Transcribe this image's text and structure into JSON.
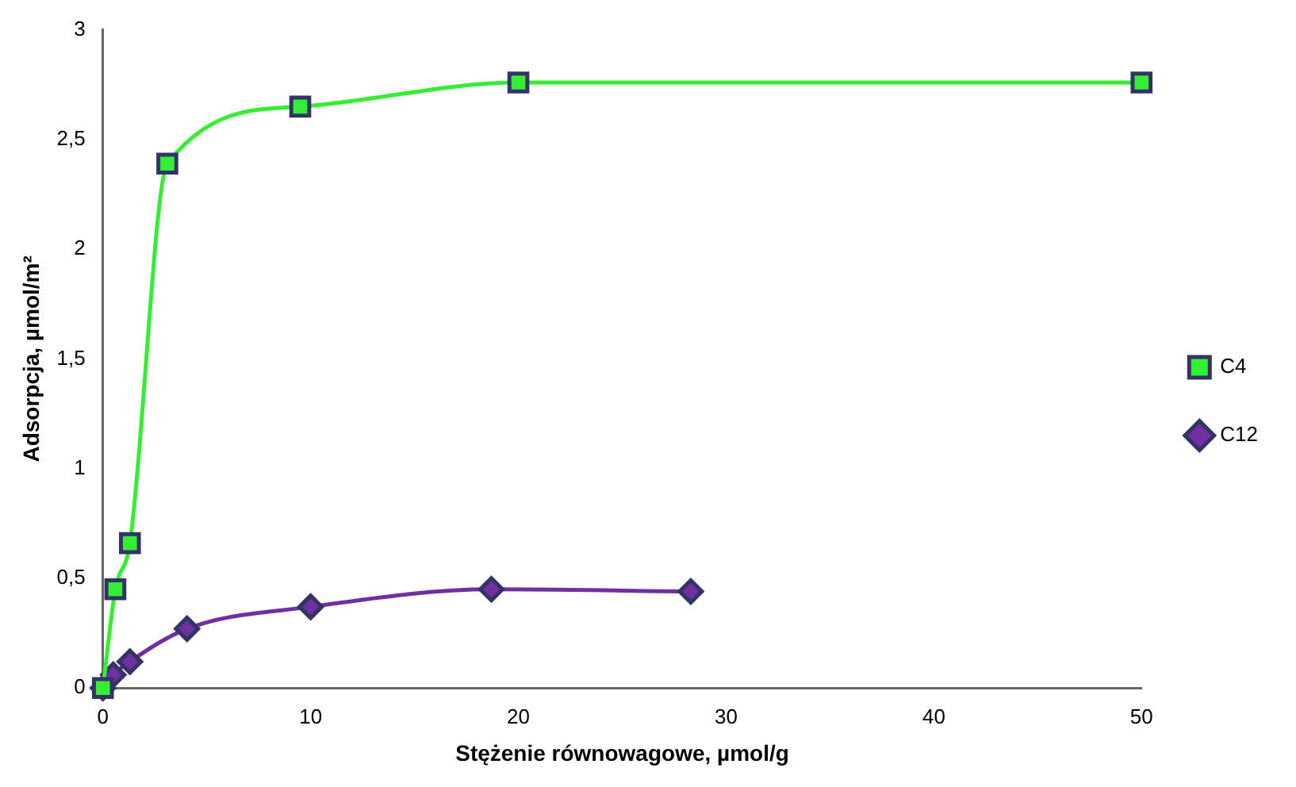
{
  "chart_data": {
    "type": "line",
    "xlabel": "Stężenie równowagowe, µmol/g",
    "ylabel": "Adsorpcja, µmol/m²",
    "xlim": [
      0,
      50
    ],
    "xticks": [
      0,
      10,
      20,
      30,
      40,
      50
    ],
    "ylim": [
      0,
      3
    ],
    "yticks": [
      0,
      {
        "value": 0.5,
        "label": "0,5"
      },
      1,
      {
        "value": 1.5,
        "label": "1,5"
      },
      2,
      {
        "value": 2.5,
        "label": "2,5"
      },
      3
    ],
    "grid": false,
    "legend": "right",
    "series": [
      {
        "name": "C4",
        "color": "#33ee33",
        "marker": "square",
        "x": [
          0,
          0.6,
          1.3,
          3.1,
          9.5,
          20,
          50
        ],
        "values": [
          0,
          0.45,
          0.66,
          2.39,
          2.65,
          2.76,
          2.76
        ]
      },
      {
        "name": "C12",
        "color": "#7030a0",
        "marker": "diamond",
        "x": [
          0,
          0.5,
          1.3,
          4.05,
          10,
          18.7,
          28.3
        ],
        "values": [
          0,
          0.06,
          0.12,
          0.27,
          0.37,
          0.45,
          0.44
        ]
      }
    ]
  }
}
